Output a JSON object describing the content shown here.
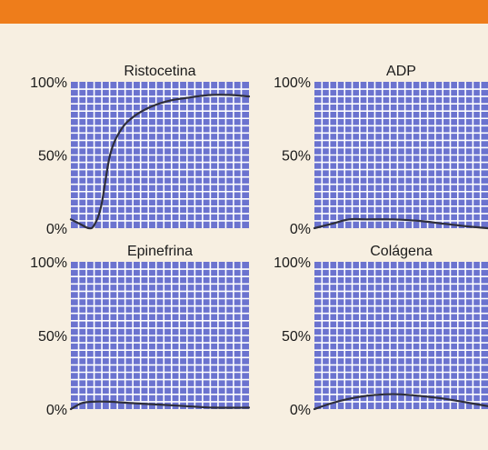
{
  "chart_data": [
    {
      "type": "line",
      "title": "Ristocetina",
      "y_ticks": [
        "100%",
        "50%",
        "0%"
      ],
      "ylim": [
        0,
        100
      ],
      "xlim": [
        0,
        1
      ],
      "grid": true,
      "colors": {
        "grid_fill": "#6b73cf",
        "grid_line": "#ffffff",
        "curve": "#2e2e3a"
      },
      "series": [
        {
          "x": [
            0,
            0.05,
            0.1,
            0.13,
            0.17,
            0.22,
            0.28,
            0.35,
            0.45,
            0.55,
            0.65,
            0.78,
            0.9,
            1.0
          ],
          "y": [
            6,
            3,
            0,
            2,
            15,
            50,
            67,
            76,
            83,
            87,
            89,
            91,
            91,
            90
          ]
        }
      ]
    },
    {
      "type": "line",
      "title": "ADP",
      "y_ticks": [
        "100%",
        "50%",
        "0%"
      ],
      "ylim": [
        0,
        100
      ],
      "xlim": [
        0,
        1
      ],
      "grid": true,
      "colors": {
        "grid_fill": "#6b73cf",
        "grid_line": "#ffffff",
        "curve": "#2e2e3a"
      },
      "series": [
        {
          "x": [
            0,
            0.1,
            0.2,
            0.3,
            0.45,
            0.6,
            0.75,
            0.9,
            1.0
          ],
          "y": [
            0,
            3,
            6,
            6,
            6,
            5,
            3,
            1,
            0
          ]
        }
      ]
    },
    {
      "type": "line",
      "title": "Epinefrina",
      "y_ticks": [
        "100%",
        "50%",
        "0%"
      ],
      "ylim": [
        0,
        100
      ],
      "xlim": [
        0,
        1
      ],
      "grid": true,
      "colors": {
        "grid_fill": "#6b73cf",
        "grid_line": "#ffffff",
        "curve": "#2e2e3a"
      },
      "series": [
        {
          "x": [
            0,
            0.06,
            0.12,
            0.22,
            0.35,
            0.5,
            0.65,
            0.8,
            1.0
          ],
          "y": [
            0,
            4,
            5,
            5,
            4,
            3,
            2,
            1,
            1
          ]
        }
      ]
    },
    {
      "type": "line",
      "title": "Colágena",
      "y_ticks": [
        "100%",
        "50%",
        "0%"
      ],
      "ylim": [
        0,
        100
      ],
      "xlim": [
        0,
        1
      ],
      "grid": true,
      "colors": {
        "grid_fill": "#6b73cf",
        "grid_line": "#ffffff",
        "curve": "#2e2e3a"
      },
      "series": [
        {
          "x": [
            0,
            0.1,
            0.2,
            0.3,
            0.4,
            0.5,
            0.6,
            0.75,
            0.9,
            1.0
          ],
          "y": [
            0,
            4,
            7,
            9,
            10,
            10,
            9,
            7,
            4,
            2
          ]
        }
      ]
    }
  ]
}
